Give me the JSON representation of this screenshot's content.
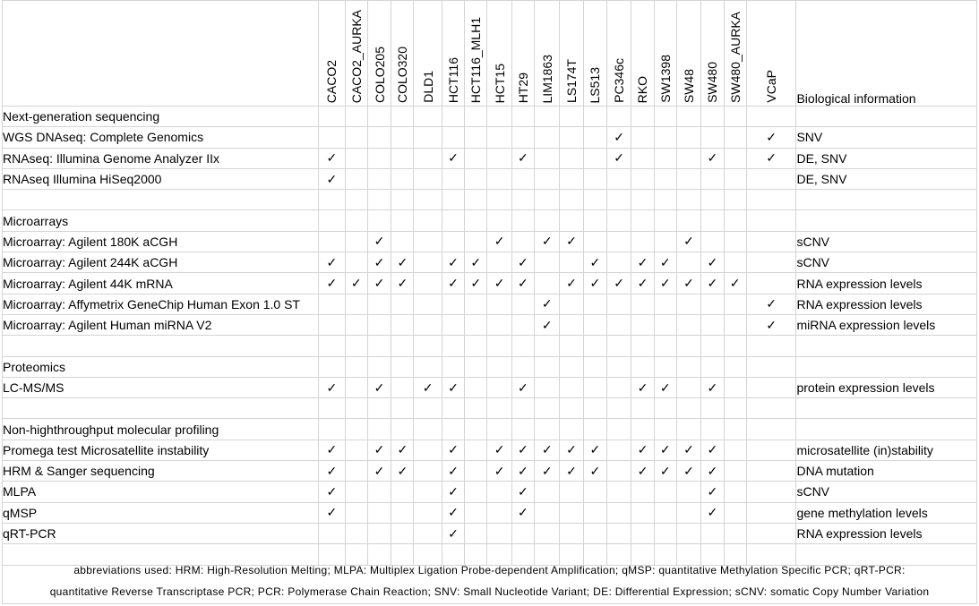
{
  "columns": [
    "CACO2",
    "CACO2_AURKA",
    "COLO205",
    "COLO320",
    "DLD1",
    "HCT116",
    "HCT116_MLH1",
    "HCT15",
    "HT29",
    "LIM1863",
    "LS174T",
    "LS513",
    "PC346c",
    "RKO",
    "SW1398",
    "SW48",
    "SW480",
    "SW480_AURKA",
    "VCaP"
  ],
  "bio_header": "Biological information",
  "check_mark": "✓",
  "rows": [
    {
      "type": "category",
      "label": "Next-generation sequencing",
      "bio": ""
    },
    {
      "type": "data",
      "label": "WGS DNAseq: Complete Genomics",
      "checks": [
        "PC346c",
        "VCaP"
      ],
      "bio": "SNV"
    },
    {
      "type": "data",
      "label": "RNAseq: Illumina Genome Analyzer IIx",
      "checks": [
        "CACO2",
        "HCT116",
        "HT29",
        "PC346c",
        "SW480",
        "VCaP"
      ],
      "bio": "DE, SNV"
    },
    {
      "type": "data",
      "label": "RNAseq Illumina HiSeq2000",
      "checks": [
        "CACO2"
      ],
      "bio": "DE, SNV"
    },
    {
      "type": "blank",
      "label": "",
      "bio": ""
    },
    {
      "type": "category",
      "label": "Microarrays",
      "bio": ""
    },
    {
      "type": "data",
      "label": "Microarray: Agilent 180K aCGH",
      "checks": [
        "COLO205",
        "HCT15",
        "LIM1863",
        "LS174T",
        "SW48"
      ],
      "bio": "sCNV"
    },
    {
      "type": "data",
      "label": "Microarray: Agilent 244K aCGH",
      "checks": [
        "CACO2",
        "COLO205",
        "COLO320",
        "HCT116",
        "HCT116_MLH1",
        "HT29",
        "LS513",
        "RKO",
        "SW1398",
        "SW480"
      ],
      "bio": "sCNV"
    },
    {
      "type": "data",
      "label": "Microarray: Agilent 44K mRNA",
      "checks": [
        "CACO2",
        "CACO2_AURKA",
        "COLO205",
        "COLO320",
        "HCT116",
        "HCT116_MLH1",
        "HCT15",
        "HT29",
        "LS174T",
        "LS513",
        "PC346c",
        "RKO",
        "SW1398",
        "SW48",
        "SW480",
        "SW480_AURKA"
      ],
      "bio": "RNA expression levels"
    },
    {
      "type": "data",
      "label": "Microarray: Affymetrix GeneChip Human Exon 1.0 ST",
      "checks": [
        "LIM1863",
        "VCaP"
      ],
      "bio": "RNA expression levels"
    },
    {
      "type": "data",
      "label": "Microarray: Agilent Human miRNA V2",
      "checks": [
        "LIM1863",
        "VCaP"
      ],
      "bio": "miRNA expression levels"
    },
    {
      "type": "blank",
      "label": "",
      "bio": ""
    },
    {
      "type": "category",
      "label": "Proteomics",
      "bio": ""
    },
    {
      "type": "data",
      "label": "LC-MS/MS",
      "checks": [
        "CACO2",
        "COLO205",
        "DLD1",
        "HCT116",
        "HT29",
        "RKO",
        "SW1398",
        "SW480"
      ],
      "bio": "protein expression levels"
    },
    {
      "type": "blank",
      "label": "",
      "bio": ""
    },
    {
      "type": "category",
      "label": "Non-highthroughput molecular profiling",
      "bio": ""
    },
    {
      "type": "data",
      "label": "Promega test Microsatellite instability",
      "checks": [
        "CACO2",
        "COLO205",
        "COLO320",
        "HCT116",
        "HCT15",
        "HT29",
        "LIM1863",
        "LS174T",
        "LS513",
        "RKO",
        "SW1398",
        "SW48",
        "SW480"
      ],
      "bio": "microsatellite (in)stability"
    },
    {
      "type": "data",
      "label": "HRM & Sanger sequencing",
      "checks": [
        "CACO2",
        "COLO205",
        "COLO320",
        "HCT116",
        "HCT15",
        "HT29",
        "LIM1863",
        "LS174T",
        "LS513",
        "RKO",
        "SW1398",
        "SW48",
        "SW480"
      ],
      "bio": "DNA mutation"
    },
    {
      "type": "data",
      "label": "MLPA",
      "checks": [
        "CACO2",
        "HCT116",
        "HT29",
        "SW480"
      ],
      "bio": "sCNV"
    },
    {
      "type": "data",
      "label": "qMSP",
      "checks": [
        "CACO2",
        "HCT116",
        "HT29",
        "SW480"
      ],
      "bio": "gene methylation levels"
    },
    {
      "type": "data",
      "label": "qRT-PCR",
      "checks": [
        "HCT116"
      ],
      "bio": "RNA expression levels"
    },
    {
      "type": "blank",
      "label": "",
      "bio": ""
    }
  ],
  "footnote": {
    "line1": "abbreviations used: HRM: High-Resolution Melting; MLPA: Multiplex Ligation Probe-dependent Amplification; qMSP: quantitative Methylation Specific PCR; qRT-PCR:",
    "line2": "quantitative Reverse Transcriptase PCR; PCR: Polymerase Chain Reaction; SNV: Small Nucleotide Variant; DE: Differential Expression; sCNV: somatic Copy Number Variation"
  }
}
